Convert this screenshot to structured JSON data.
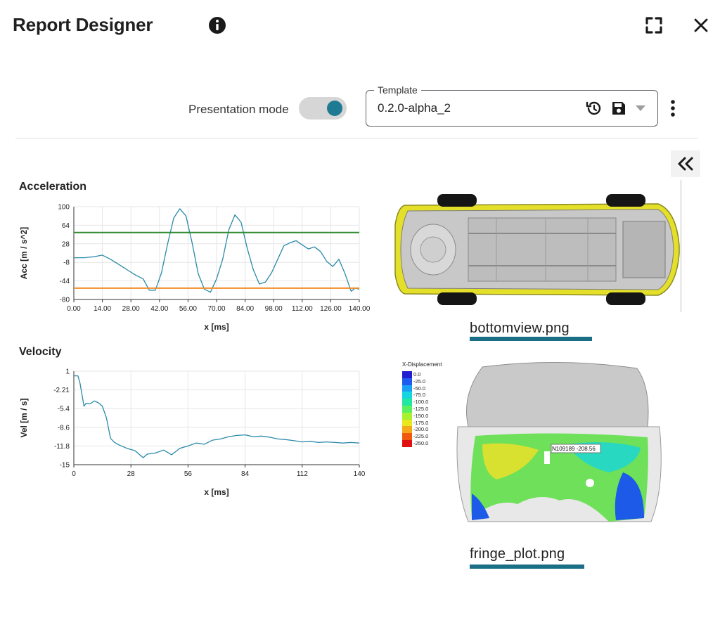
{
  "header": {
    "title": "Report Designer",
    "info_icon": "info-icon",
    "fullscreen_icon": "fullscreen-icon",
    "close_icon": "close-icon"
  },
  "toolbar": {
    "presentation_mode_label": "Presentation mode",
    "presentation_mode_on": true,
    "template_label": "Template",
    "template_value": "0.2.0-alpha_2",
    "history_icon": "history-icon",
    "save_icon": "save-icon",
    "dropdown_icon": "caret-down-icon",
    "more_icon": "more-vert-icon",
    "collapse_icon": "double-chevron-left-icon"
  },
  "colors": {
    "accent": "#1f7a94",
    "series": "#2a8aa8",
    "upper_limit": "#2e8b2e",
    "lower_limit": "#f28c28",
    "caption_bar": "#1a6f86"
  },
  "images": [
    {
      "caption": "bottomview.png"
    },
    {
      "caption": "fringe_plot.png"
    }
  ],
  "fringe_legend": {
    "title": "X-Displacement",
    "entries": [
      "0.0",
      "-25.0",
      "-50.0",
      "-75.0",
      "-100.0",
      "-125.0",
      "-150.0",
      "-175.0",
      "-200.0",
      "-225.0",
      "-250.0"
    ],
    "colors": [
      "#1f1fd0",
      "#1e5cf0",
      "#1aa0f5",
      "#15d5e0",
      "#20e8a0",
      "#5af060",
      "#a8f030",
      "#e8e820",
      "#f5a818",
      "#f05a10",
      "#e01010"
    ],
    "probe_label": "N109189 -208.56"
  },
  "chart_data": [
    {
      "type": "line",
      "title": "Acceleration",
      "xlabel": "x  [ms]",
      "ylabel": "Acc  [m / s^2]",
      "xlim": [
        0,
        140
      ],
      "ylim": [
        -80,
        100
      ],
      "x_ticks": [
        "0.00",
        "14.00",
        "28.00",
        "42.00",
        "56.00",
        "70.00",
        "84.00",
        "98.00",
        "112.00",
        "126.00",
        "140.00"
      ],
      "y_ticks": [
        "100",
        "64",
        "28",
        "-8",
        "-44",
        "-80"
      ],
      "grid": true,
      "series": [
        {
          "x": [
            0,
            5,
            10,
            14,
            18,
            22,
            26,
            30,
            34,
            37,
            40,
            43,
            46,
            49,
            52,
            55,
            58,
            61,
            64,
            67,
            70,
            73,
            76,
            79,
            82,
            85,
            88,
            91,
            94,
            97,
            100,
            103,
            106,
            109,
            112,
            115,
            118,
            121,
            124,
            127,
            130,
            133,
            136,
            138,
            140
          ],
          "y": [
            1,
            1,
            3,
            6,
            -2,
            -12,
            -22,
            -32,
            -40,
            -62,
            -62,
            -28,
            28,
            78,
            96,
            82,
            30,
            -30,
            -60,
            -66,
            -40,
            -2,
            55,
            84,
            70,
            20,
            -22,
            -50,
            -46,
            -28,
            -2,
            24,
            30,
            34,
            26,
            18,
            22,
            13,
            -6,
            -16,
            -2,
            -30,
            -64,
            -58,
            -60
          ]
        },
        {
          "x": [
            0,
            140
          ],
          "y": [
            50,
            50
          ]
        },
        {
          "x": [
            0,
            140
          ],
          "y": [
            -58,
            -58
          ]
        }
      ]
    },
    {
      "type": "line",
      "title": "Velocity",
      "xlabel": "x  [ms]",
      "ylabel": "Vel  [m / s]",
      "xlim": [
        0,
        140
      ],
      "ylim": [
        -15,
        1
      ],
      "x_ticks": [
        "0",
        "28",
        "56",
        "84",
        "112",
        "140"
      ],
      "y_ticks": [
        "1",
        "-2.21",
        "-5.4",
        "-8.6",
        "-11.8",
        "-15"
      ],
      "grid": true,
      "series": [
        {
          "x": [
            0,
            2,
            3,
            4,
            5,
            6,
            8,
            10,
            12,
            14,
            16,
            18,
            20,
            22,
            26,
            30,
            34,
            36,
            40,
            44,
            48,
            52,
            56,
            60,
            64,
            68,
            72,
            76,
            80,
            84,
            88,
            92,
            96,
            100,
            104,
            108,
            112,
            116,
            120,
            124,
            128,
            132,
            136,
            140
          ],
          "y": [
            0.2,
            0.2,
            -1,
            -3,
            -5,
            -4.5,
            -4.6,
            -4.1,
            -4.4,
            -5.0,
            -7.0,
            -10.5,
            -11.2,
            -11.6,
            -12.2,
            -12.6,
            -13.8,
            -13.2,
            -13.0,
            -12.5,
            -13.3,
            -12.2,
            -11.8,
            -11.3,
            -11.5,
            -10.8,
            -10.6,
            -10.2,
            -10.0,
            -9.9,
            -10.2,
            -10.1,
            -10.3,
            -10.6,
            -10.7,
            -10.9,
            -11.1,
            -11.0,
            -11.2,
            -11.1,
            -11.2,
            -11.3,
            -11.2,
            -11.3
          ]
        }
      ]
    }
  ]
}
